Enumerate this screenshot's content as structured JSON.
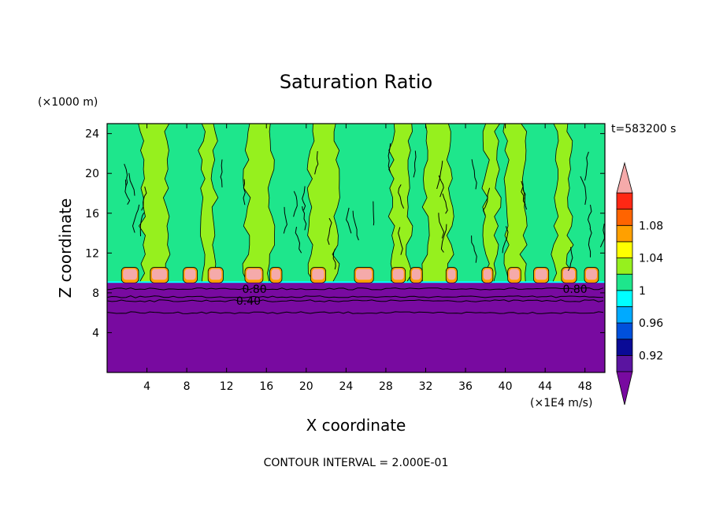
{
  "chart_data": {
    "type": "heatmap",
    "title": "Saturation Ratio",
    "xlabel": "X coordinate",
    "ylabel": "Z coordinate",
    "x_unit": "(×1E4 m/s)",
    "y_unit": "(×1000 m)",
    "time_label": "t=583200 s",
    "footer": "CONTOUR INTERVAL = 2.000E-01",
    "xlim": [
      0,
      50
    ],
    "ylim": [
      0,
      25
    ],
    "x_ticks": [
      4,
      8,
      12,
      16,
      20,
      24,
      28,
      32,
      36,
      40,
      44,
      48
    ],
    "y_ticks": [
      4,
      8,
      12,
      16,
      20,
      24
    ],
    "contour_labels": [
      {
        "text": "0.80",
        "x": 14.8,
        "z": 8.4
      },
      {
        "text": "0.40",
        "x": 14.2,
        "z": 7.2
      },
      {
        "text": "0.80",
        "x": 47.0,
        "z": 8.4
      }
    ],
    "colorbar": {
      "levels": [
        0.9,
        0.92,
        0.94,
        0.96,
        0.98,
        1.0,
        1.02,
        1.04,
        1.06,
        1.08,
        1.1
      ],
      "colors": [
        "#5a14a0",
        "#0a0a96",
        "#0050dc",
        "#00aaff",
        "#00ffff",
        "#1ee68c",
        "#96f01e",
        "#ffff00",
        "#ffa000",
        "#ff6400",
        "#ff2814",
        "#f5aaaa"
      ],
      "under_color": "#780aa0",
      "over_color": "#f5aaaa",
      "tick_labels": [
        "0.92",
        "0.96",
        "1",
        "1.04",
        "1.08"
      ]
    },
    "regions": {
      "lower_layer": {
        "z_top": 8.7,
        "value": "< 0.90",
        "color": "#780aa0"
      },
      "band_layer": {
        "z_bottom": 8.7,
        "z_top": 9.0,
        "value": "0.98",
        "color": "#00ffff"
      },
      "upper_background": {
        "value": "1.00–1.02",
        "color": "#1ee68c"
      },
      "plumes": {
        "value": "1.02–1.04",
        "color": "#96f01e",
        "x_ranges": [
          [
            3.5,
            6.0
          ],
          [
            9.5,
            10.8
          ],
          [
            14.0,
            16.5
          ],
          [
            20.5,
            23.0
          ],
          [
            28.5,
            30.3
          ],
          [
            32.0,
            34.5
          ],
          [
            38.0,
            39.2
          ],
          [
            40.0,
            41.8
          ],
          [
            45.0,
            46.5
          ]
        ]
      },
      "cloud_caps": {
        "value": "> 1.06",
        "color": "#f5aaaa",
        "x_ranges": [
          [
            1.6,
            3.0
          ],
          [
            4.5,
            6.0
          ],
          [
            7.8,
            8.9
          ],
          [
            10.3,
            11.5
          ],
          [
            14.0,
            15.5
          ],
          [
            16.5,
            17.4
          ],
          [
            20.6,
            21.8
          ],
          [
            25.0,
            26.6
          ],
          [
            28.7,
            29.8
          ],
          [
            30.6,
            31.5
          ],
          [
            34.2,
            35.0
          ],
          [
            37.8,
            38.6
          ],
          [
            40.4,
            41.4
          ],
          [
            43.0,
            44.2
          ],
          [
            45.8,
            47.0
          ],
          [
            48.1,
            49.2
          ]
        ]
      }
    }
  }
}
